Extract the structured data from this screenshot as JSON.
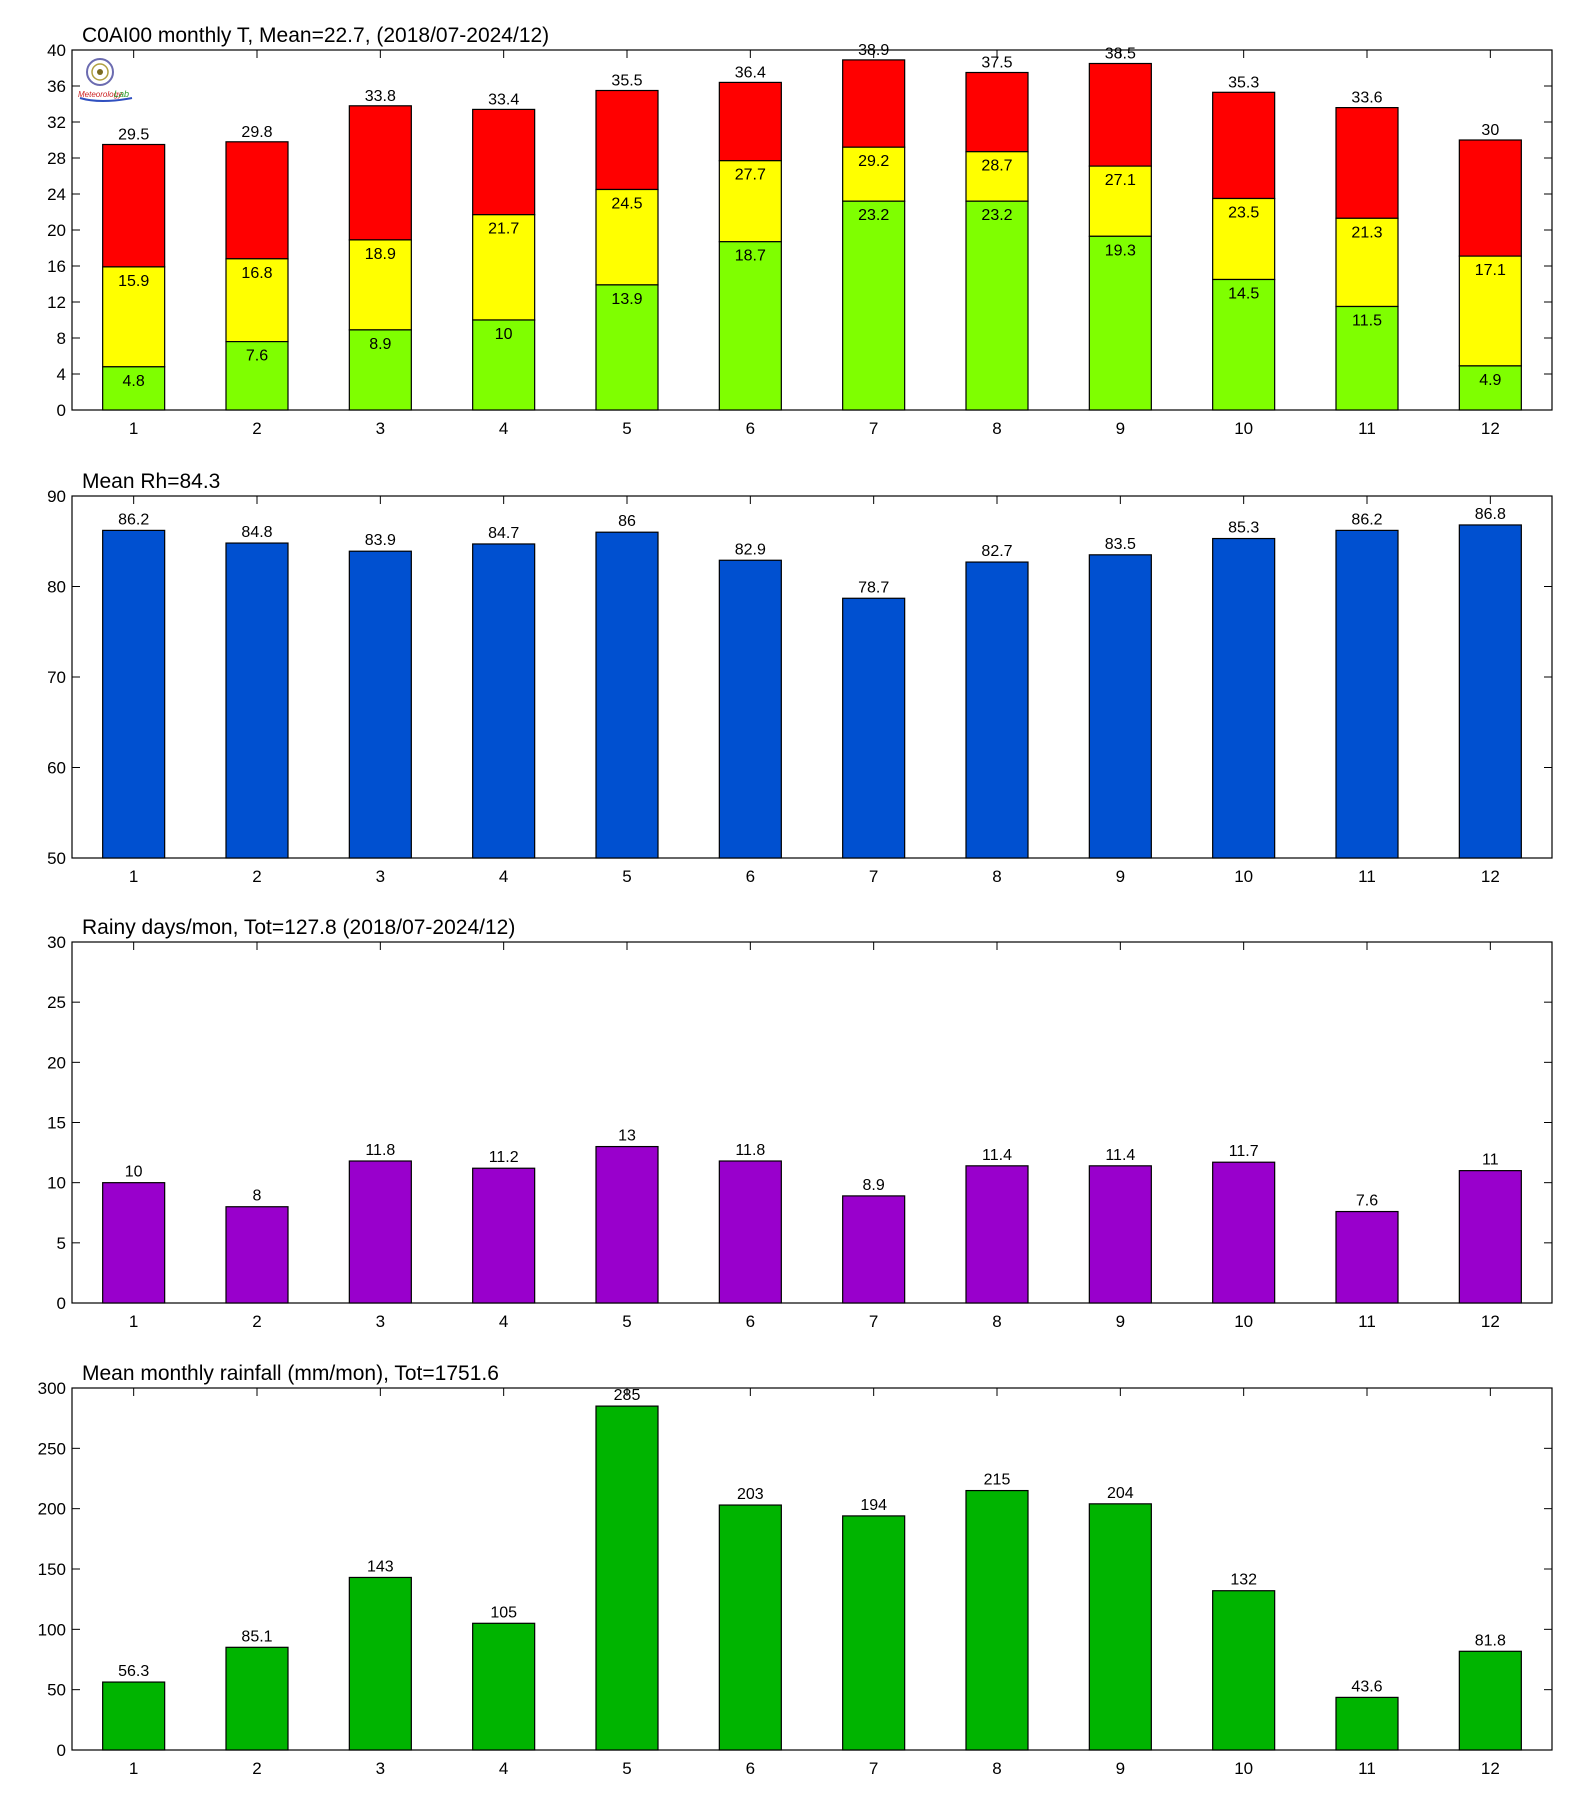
{
  "chart_data": [
    {
      "type": "bar",
      "subtype": "stacked",
      "title": "C0AI00 monthly T, Mean=22.7, (2018/07-2024/12)",
      "categories": [
        "1",
        "2",
        "3",
        "4",
        "5",
        "6",
        "7",
        "8",
        "9",
        "10",
        "11",
        "12"
      ],
      "series": [
        {
          "values": [
            4.8,
            7.6,
            8.9,
            10,
            13.9,
            18.7,
            23.2,
            23.2,
            19.3,
            14.5,
            11.5,
            4.9
          ],
          "color": "#7fff00"
        },
        {
          "values": [
            15.9,
            16.8,
            18.9,
            21.7,
            24.5,
            27.7,
            29.2,
            28.7,
            27.1,
            23.5,
            21.3,
            17.1
          ],
          "color": "#ffff00"
        },
        {
          "values": [
            29.5,
            29.8,
            33.8,
            33.4,
            35.5,
            36.4,
            38.9,
            37.5,
            38.5,
            35.3,
            33.6,
            30
          ],
          "color": "#ff0000"
        }
      ],
      "labels": {
        "low": [
          "4.8",
          "7.6",
          "8.9",
          "10",
          "13.9",
          "18.7",
          "23.2",
          "23.2",
          "19.3",
          "14.5",
          "11.5",
          "4.9"
        ],
        "mid": [
          "15.9",
          "16.8",
          "18.9",
          "21.7",
          "24.5",
          "27.7",
          "29.2",
          "28.7",
          "27.1",
          "23.5",
          "21.3",
          "17.1"
        ],
        "top": [
          "29.5",
          "29.8",
          "33.8",
          "33.4",
          "35.5",
          "36.4",
          "38.9",
          "37.5",
          "38.5",
          "35.3",
          "33.6",
          "30"
        ]
      },
      "ylim": [
        0,
        40
      ],
      "yticks": [
        "0",
        "4",
        "8",
        "12",
        "16",
        "20",
        "24",
        "28",
        "32",
        "36",
        "40"
      ],
      "ytick_values": [
        0,
        4,
        8,
        12,
        16,
        20,
        24,
        28,
        32,
        36,
        40
      ],
      "xlabel": "",
      "ylabel": "",
      "grid": false,
      "logo_text": [
        "Meteorology",
        "Lab"
      ]
    },
    {
      "type": "bar",
      "title": "Mean Rh=84.3",
      "categories": [
        "1",
        "2",
        "3",
        "4",
        "5",
        "6",
        "7",
        "8",
        "9",
        "10",
        "11",
        "12"
      ],
      "values": [
        86.2,
        84.8,
        83.9,
        84.7,
        86,
        82.9,
        78.7,
        82.7,
        83.5,
        85.3,
        86.2,
        86.8
      ],
      "labels": [
        "86.2",
        "84.8",
        "83.9",
        "84.7",
        "86",
        "82.9",
        "78.7",
        "82.7",
        "83.5",
        "85.3",
        "86.2",
        "86.8"
      ],
      "color": "#0050d0",
      "ylim": [
        50,
        90
      ],
      "yticks": [
        "50",
        "60",
        "70",
        "80",
        "90"
      ],
      "ytick_values": [
        50,
        60,
        70,
        80,
        90
      ],
      "xlabel": "",
      "ylabel": "",
      "grid": false
    },
    {
      "type": "bar",
      "title": "Rainy days/mon, Tot=127.8 (2018/07-2024/12)",
      "categories": [
        "1",
        "2",
        "3",
        "4",
        "5",
        "6",
        "7",
        "8",
        "9",
        "10",
        "11",
        "12"
      ],
      "values": [
        10,
        8,
        11.8,
        11.2,
        13,
        11.8,
        8.9,
        11.4,
        11.4,
        11.7,
        7.6,
        11
      ],
      "labels": [
        "10",
        "8",
        "11.8",
        "11.2",
        "13",
        "11.8",
        "8.9",
        "11.4",
        "11.4",
        "11.7",
        "7.6",
        "11"
      ],
      "color": "#9900cc",
      "ylim": [
        0,
        30
      ],
      "yticks": [
        "0",
        "5",
        "10",
        "15",
        "20",
        "25",
        "30"
      ],
      "ytick_values": [
        0,
        5,
        10,
        15,
        20,
        25,
        30
      ],
      "xlabel": "",
      "ylabel": "",
      "grid": false
    },
    {
      "type": "bar",
      "title": "Mean monthly rainfall (mm/mon), Tot=1751.6",
      "categories": [
        "1",
        "2",
        "3",
        "4",
        "5",
        "6",
        "7",
        "8",
        "9",
        "10",
        "11",
        "12"
      ],
      "values": [
        56.3,
        85.1,
        143,
        105,
        285,
        203,
        194,
        215,
        204,
        132,
        43.6,
        81.8
      ],
      "labels": [
        "56.3",
        "85.1",
        "143",
        "105",
        "285",
        "203",
        "194",
        "215",
        "204",
        "132",
        "43.6",
        "81.8"
      ],
      "color": "#00b400",
      "ylim": [
        0,
        300
      ],
      "yticks": [
        "0",
        "50",
        "100",
        "150",
        "200",
        "250",
        "300"
      ],
      "ytick_values": [
        0,
        50,
        100,
        150,
        200,
        250,
        300
      ],
      "xlabel": "",
      "ylabel": "",
      "grid": false
    }
  ]
}
